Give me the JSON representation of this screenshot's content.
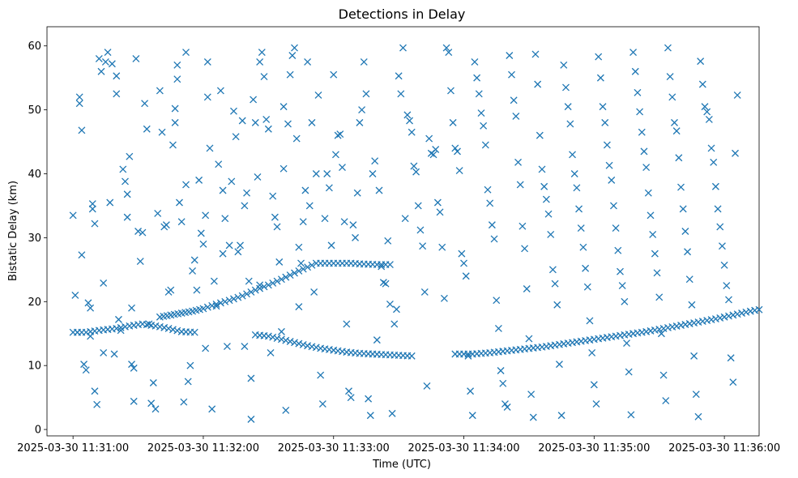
{
  "chart_data": {
    "type": "scatter",
    "title": "Detections in Delay",
    "xlabel": "Time (UTC)",
    "ylabel": "Bistatic Delay (km)",
    "marker": "x",
    "color": "#1f77b4",
    "grid": false,
    "x_unit": "seconds after 2025-03-30 11:31:00",
    "xlim": [
      -12,
      316
    ],
    "ylim": [
      -1,
      63
    ],
    "x_ticks": [
      0,
      60,
      120,
      180,
      240,
      300
    ],
    "x_tick_labels": [
      "2025-03-30 11:31:00",
      "2025-03-30 11:32:00",
      "2025-03-30 11:33:00",
      "2025-03-30 11:34:00",
      "2025-03-30 11:35:00",
      "2025-03-30 11:36:00"
    ],
    "y_ticks": [
      0,
      10,
      20,
      30,
      40,
      50,
      60
    ],
    "y_tick_labels": [
      "0",
      "10",
      "20",
      "30",
      "40",
      "50",
      "60"
    ],
    "tracks": [
      {
        "description": "low track",
        "points": [
          [
            0,
            15.2
          ],
          [
            6,
            15.2
          ],
          [
            12,
            15.5
          ],
          [
            20,
            15.8
          ],
          [
            26,
            16.2
          ],
          [
            32,
            16.5
          ],
          [
            38,
            16.2
          ],
          [
            44,
            15.8
          ],
          [
            50,
            15.3
          ],
          [
            56,
            15.2
          ]
        ]
      },
      {
        "description": "mid track",
        "points": [
          [
            40,
            17.6
          ],
          [
            45,
            17.9
          ],
          [
            50,
            18.2
          ],
          [
            55,
            18.5
          ],
          [
            60,
            18.9
          ],
          [
            66,
            19.6
          ],
          [
            72,
            20.2
          ],
          [
            78,
            20.9
          ],
          [
            84,
            21.8
          ],
          [
            90,
            22.6
          ],
          [
            96,
            23.5
          ],
          [
            104,
            24.8
          ],
          [
            112,
            26.0
          ],
          [
            120,
            26.0
          ],
          [
            128,
            26.0
          ],
          [
            132,
            25.9
          ],
          [
            140,
            25.8
          ],
          [
            146,
            25.8
          ]
        ]
      },
      {
        "description": "descending track",
        "points": [
          [
            84,
            14.8
          ],
          [
            90,
            14.6
          ],
          [
            96,
            14.1
          ],
          [
            102,
            13.6
          ],
          [
            108,
            13.1
          ],
          [
            114,
            12.7
          ],
          [
            120,
            12.4
          ],
          [
            126,
            12.1
          ],
          [
            132,
            11.9
          ],
          [
            138,
            11.8
          ],
          [
            144,
            11.7
          ],
          [
            150,
            11.6
          ],
          [
            156,
            11.5
          ]
        ]
      },
      {
        "description": "rising track",
        "points": [
          [
            176,
            11.8
          ],
          [
            184,
            11.8
          ],
          [
            192,
            12.0
          ],
          [
            200,
            12.3
          ],
          [
            208,
            12.6
          ],
          [
            216,
            12.9
          ],
          [
            224,
            13.3
          ],
          [
            232,
            13.7
          ],
          [
            240,
            14.1
          ],
          [
            248,
            14.5
          ],
          [
            256,
            14.9
          ],
          [
            264,
            15.3
          ],
          [
            272,
            15.8
          ],
          [
            280,
            16.3
          ],
          [
            288,
            16.8
          ],
          [
            296,
            17.3
          ],
          [
            304,
            17.9
          ],
          [
            312,
            18.5
          ],
          [
            320,
            19.0
          ]
        ]
      }
    ],
    "points": [
      [
        0,
        33.5
      ],
      [
        1,
        21
      ],
      [
        2,
        15.2
      ],
      [
        3,
        52
      ],
      [
        3,
        51
      ],
      [
        4,
        46.8
      ],
      [
        4,
        27.3
      ],
      [
        5,
        10.2
      ],
      [
        6,
        9.3
      ],
      [
        7,
        19.8
      ],
      [
        8,
        19
      ],
      [
        8,
        14.6
      ],
      [
        9,
        35.3
      ],
      [
        9,
        34.5
      ],
      [
        10,
        32.2
      ],
      [
        10,
        6
      ],
      [
        11,
        3.9
      ],
      [
        12,
        58
      ],
      [
        13,
        56
      ],
      [
        14,
        22.9
      ],
      [
        14,
        12
      ],
      [
        15,
        57.5
      ],
      [
        16,
        59
      ],
      [
        17,
        35.5
      ],
      [
        18,
        57.2
      ],
      [
        19,
        11.8
      ],
      [
        20,
        55.3
      ],
      [
        20,
        52.5
      ],
      [
        21,
        17.2
      ],
      [
        22,
        15.5
      ],
      [
        23,
        40.7
      ],
      [
        24,
        38.8
      ],
      [
        25,
        36.8
      ],
      [
        25,
        33.2
      ],
      [
        26,
        42.7
      ],
      [
        27,
        19
      ],
      [
        27,
        10.2
      ],
      [
        28,
        9.6
      ],
      [
        28,
        4.4
      ],
      [
        29,
        58
      ],
      [
        30,
        31
      ],
      [
        31,
        26.3
      ],
      [
        32,
        30.8
      ],
      [
        33,
        51
      ],
      [
        34,
        47
      ],
      [
        35,
        16.5
      ],
      [
        36,
        4.1
      ],
      [
        37,
        7.3
      ],
      [
        38,
        3.2
      ],
      [
        39,
        33.8
      ],
      [
        40,
        53
      ],
      [
        41,
        46.5
      ],
      [
        42,
        31.7
      ],
      [
        43,
        32
      ],
      [
        44,
        21.5
      ],
      [
        45,
        21.8
      ],
      [
        46,
        44.5
      ],
      [
        47,
        48
      ],
      [
        47,
        50.2
      ],
      [
        48,
        57
      ],
      [
        48,
        54.8
      ],
      [
        49,
        35.5
      ],
      [
        50,
        32.5
      ],
      [
        51,
        4.3
      ],
      [
        52,
        59
      ],
      [
        52,
        38.3
      ],
      [
        53,
        7.5
      ],
      [
        54,
        10
      ],
      [
        55,
        24.8
      ],
      [
        56,
        26.5
      ],
      [
        57,
        21.8
      ],
      [
        58,
        39
      ],
      [
        59,
        30.7
      ],
      [
        60,
        29
      ],
      [
        61,
        33.5
      ],
      [
        61,
        12.7
      ],
      [
        62,
        57.5
      ],
      [
        62,
        52
      ],
      [
        63,
        44
      ],
      [
        64,
        3.2
      ],
      [
        65,
        23.2
      ],
      [
        66,
        19.3
      ],
      [
        67,
        41.5
      ],
      [
        68,
        53
      ],
      [
        69,
        37.4
      ],
      [
        69,
        27.5
      ],
      [
        70,
        33
      ],
      [
        71,
        13
      ],
      [
        72,
        28.8
      ],
      [
        73,
        38.8
      ],
      [
        74,
        49.8
      ],
      [
        75,
        45.8
      ],
      [
        76,
        27.8
      ],
      [
        77,
        28.8
      ],
      [
        78,
        48.3
      ],
      [
        79,
        35
      ],
      [
        79,
        13
      ],
      [
        80,
        37
      ],
      [
        81,
        23.2
      ],
      [
        82,
        8
      ],
      [
        82,
        1.6
      ],
      [
        83,
        51.6
      ],
      [
        84,
        48
      ],
      [
        85,
        39.5
      ],
      [
        86,
        22.6
      ],
      [
        86,
        57.5
      ],
      [
        87,
        59
      ],
      [
        88,
        55.2
      ],
      [
        89,
        48.5
      ],
      [
        90,
        47
      ],
      [
        91,
        12
      ],
      [
        92,
        36.5
      ],
      [
        93,
        33.2
      ],
      [
        94,
        31.7
      ],
      [
        95,
        26.2
      ],
      [
        96,
        15.3
      ],
      [
        97,
        50.5
      ],
      [
        97,
        40.8
      ],
      [
        98,
        3
      ],
      [
        99,
        47.8
      ],
      [
        100,
        55.5
      ],
      [
        101,
        58.5
      ],
      [
        102,
        59.7
      ],
      [
        103,
        45.5
      ],
      [
        104,
        28.5
      ],
      [
        104,
        19.2
      ],
      [
        105,
        26
      ],
      [
        106,
        32.5
      ],
      [
        107,
        37.4
      ],
      [
        108,
        57.5
      ],
      [
        109,
        35
      ],
      [
        110,
        48
      ],
      [
        111,
        21.5
      ],
      [
        112,
        40
      ],
      [
        113,
        52.3
      ],
      [
        114,
        8.5
      ],
      [
        115,
        4
      ],
      [
        116,
        33
      ],
      [
        117,
        40
      ],
      [
        118,
        37.8
      ],
      [
        119,
        28.8
      ],
      [
        120,
        55.5
      ],
      [
        121,
        43
      ],
      [
        122,
        46
      ],
      [
        123,
        46.2
      ],
      [
        124,
        41
      ],
      [
        125,
        32.5
      ],
      [
        126,
        16.5
      ],
      [
        127,
        6
      ],
      [
        128,
        5
      ],
      [
        129,
        32
      ],
      [
        130,
        30
      ],
      [
        131,
        37
      ],
      [
        132,
        48
      ],
      [
        133,
        50
      ],
      [
        134,
        57.5
      ],
      [
        135,
        52.5
      ],
      [
        136,
        4.8
      ],
      [
        137,
        2.2
      ],
      [
        138,
        40
      ],
      [
        139,
        42
      ],
      [
        140,
        14
      ],
      [
        141,
        37.4
      ],
      [
        142,
        25.5
      ],
      [
        143,
        23
      ],
      [
        144,
        22.8
      ],
      [
        145,
        29.5
      ],
      [
        146,
        19.6
      ],
      [
        147,
        2.5
      ],
      [
        148,
        16.5
      ],
      [
        149,
        18.8
      ],
      [
        150,
        55.3
      ],
      [
        151,
        52.5
      ],
      [
        152,
        59.7
      ],
      [
        153,
        33
      ],
      [
        154,
        49.2
      ],
      [
        155,
        48.3
      ],
      [
        156,
        46.5
      ],
      [
        157,
        41.2
      ],
      [
        158,
        40.3
      ],
      [
        159,
        35
      ],
      [
        160,
        31.2
      ],
      [
        161,
        28.7
      ],
      [
        162,
        21.5
      ],
      [
        163,
        6.8
      ],
      [
        164,
        45.5
      ],
      [
        165,
        43.2
      ],
      [
        166,
        43
      ],
      [
        167,
        43.8
      ],
      [
        168,
        35.5
      ],
      [
        169,
        34
      ],
      [
        170,
        28.5
      ],
      [
        171,
        20.5
      ],
      [
        172,
        59.7
      ],
      [
        173,
        59
      ],
      [
        174,
        53
      ],
      [
        175,
        48
      ],
      [
        176,
        44
      ],
      [
        177,
        43.5
      ],
      [
        178,
        40.5
      ],
      [
        179,
        27.5
      ],
      [
        180,
        26
      ],
      [
        181,
        24
      ],
      [
        182,
        11.5
      ],
      [
        183,
        6
      ],
      [
        184,
        2.2
      ],
      [
        185,
        57.5
      ],
      [
        186,
        55
      ],
      [
        187,
        52.5
      ],
      [
        188,
        49.5
      ],
      [
        189,
        47.5
      ],
      [
        190,
        44.5
      ],
      [
        191,
        37.5
      ],
      [
        192,
        35.4
      ],
      [
        193,
        32
      ],
      [
        194,
        29.8
      ],
      [
        195,
        20.2
      ],
      [
        196,
        15.8
      ],
      [
        197,
        9.2
      ],
      [
        198,
        7.2
      ],
      [
        199,
        4
      ],
      [
        200,
        3.5
      ],
      [
        201,
        58.5
      ],
      [
        202,
        55.5
      ],
      [
        203,
        51.5
      ],
      [
        204,
        49
      ],
      [
        205,
        41.8
      ],
      [
        206,
        38.3
      ],
      [
        207,
        31.8
      ],
      [
        208,
        28.3
      ],
      [
        209,
        22
      ],
      [
        210,
        14.2
      ],
      [
        211,
        5.5
      ],
      [
        212,
        1.9
      ],
      [
        213,
        58.7
      ],
      [
        214,
        54
      ],
      [
        215,
        46
      ],
      [
        216,
        40.7
      ],
      [
        217,
        38
      ],
      [
        218,
        36
      ],
      [
        219,
        33.7
      ],
      [
        220,
        30.5
      ],
      [
        221,
        25
      ],
      [
        222,
        22.8
      ],
      [
        223,
        19.5
      ],
      [
        224,
        10.2
      ],
      [
        225,
        2.2
      ],
      [
        226,
        57
      ],
      [
        227,
        53.5
      ],
      [
        228,
        50.5
      ],
      [
        229,
        47.8
      ],
      [
        230,
        43
      ],
      [
        231,
        40
      ],
      [
        232,
        37.8
      ],
      [
        233,
        34.5
      ],
      [
        234,
        31.5
      ],
      [
        235,
        28.5
      ],
      [
        236,
        25.2
      ],
      [
        237,
        22.3
      ],
      [
        238,
        17
      ],
      [
        239,
        12
      ],
      [
        240,
        7
      ],
      [
        241,
        4
      ],
      [
        242,
        58.3
      ],
      [
        243,
        55
      ],
      [
        244,
        50.5
      ],
      [
        245,
        48
      ],
      [
        246,
        44.5
      ],
      [
        247,
        41.3
      ],
      [
        248,
        39
      ],
      [
        249,
        35
      ],
      [
        250,
        31.5
      ],
      [
        251,
        28
      ],
      [
        252,
        24.7
      ],
      [
        253,
        22.5
      ],
      [
        254,
        20
      ],
      [
        255,
        13.5
      ],
      [
        256,
        9
      ],
      [
        257,
        2.3
      ],
      [
        258,
        59
      ],
      [
        259,
        56
      ],
      [
        260,
        52.7
      ],
      [
        261,
        49.7
      ],
      [
        262,
        46.5
      ],
      [
        263,
        43.5
      ],
      [
        264,
        41
      ],
      [
        265,
        37
      ],
      [
        266,
        33.5
      ],
      [
        267,
        30.5
      ],
      [
        268,
        27.5
      ],
      [
        269,
        24.5
      ],
      [
        270,
        20.7
      ],
      [
        271,
        15
      ],
      [
        272,
        8.5
      ],
      [
        273,
        4.5
      ],
      [
        274,
        59.7
      ],
      [
        275,
        55.2
      ],
      [
        276,
        52
      ],
      [
        277,
        48
      ],
      [
        278,
        46.7
      ],
      [
        279,
        42.5
      ],
      [
        280,
        37.9
      ],
      [
        281,
        34.5
      ],
      [
        282,
        31
      ],
      [
        283,
        27.8
      ],
      [
        284,
        23.5
      ],
      [
        285,
        19.5
      ],
      [
        286,
        11.5
      ],
      [
        287,
        5.5
      ],
      [
        288,
        2
      ],
      [
        289,
        57.6
      ],
      [
        290,
        54
      ],
      [
        291,
        50.5
      ],
      [
        292,
        49.7
      ],
      [
        293,
        48.5
      ],
      [
        294,
        44
      ],
      [
        295,
        41.8
      ],
      [
        296,
        38
      ],
      [
        297,
        34.5
      ],
      [
        298,
        31.7
      ],
      [
        299,
        28.7
      ],
      [
        300,
        25.7
      ],
      [
        301,
        22.5
      ],
      [
        302,
        20.3
      ],
      [
        303,
        11.2
      ],
      [
        304,
        7.4
      ],
      [
        305,
        43.2
      ],
      [
        306,
        52.3
      ]
    ]
  }
}
